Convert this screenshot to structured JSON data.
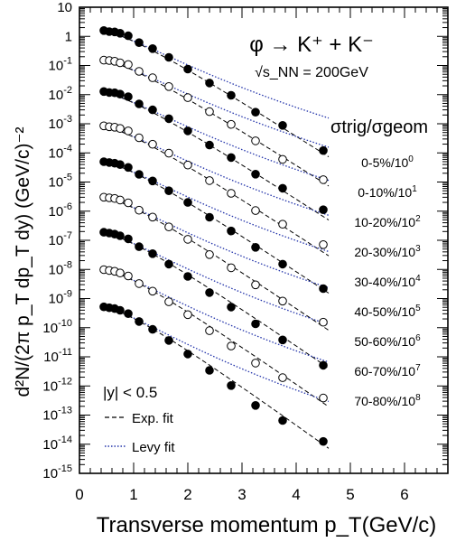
{
  "chart_data": {
    "type": "scatter",
    "title": "φ → K⁺ + K⁻",
    "subtitle": "√s_NN = 200GeV",
    "xlabel": "Transverse momentum p_T(GeV/c)",
    "ylabel": "d²N/(2π p_T dp_T dy) (GeV/c)⁻²",
    "xlim": [
      0,
      6.8
    ],
    "ylim_log10": [
      -15,
      1
    ],
    "y_scale": "log",
    "x_ticks": [
      0,
      1,
      2,
      3,
      4,
      5,
      6
    ],
    "y_ticks_exp": [
      -15,
      -14,
      -13,
      -12,
      -11,
      -10,
      -9,
      -8,
      -7,
      -6,
      -5,
      -4,
      -3,
      -2,
      -1,
      0,
      1
    ],
    "legend_header": "σtrig/σgeom",
    "annotations": {
      "rapidity": "|y| < 0.5",
      "exp_fit": "Exp. fit",
      "levy_fit": "Levy fit"
    },
    "x": [
      0.45,
      0.55,
      0.65,
      0.75,
      0.9,
      1.1,
      1.35,
      1.65,
      2.0,
      2.4,
      2.8,
      3.25,
      3.75,
      4.5
    ],
    "series": [
      {
        "name": "0-5%/10",
        "exp": "0",
        "marker": "filled",
        "A": 1.6,
        "T": 0.36,
        "y": [
          1.58,
          1.45,
          1.42,
          1.28,
          1.05,
          0.61,
          0.38,
          0.19,
          0.075,
          0.025,
          0.0095,
          0.0025,
          0.00088,
          0.00012
        ]
      },
      {
        "name": "0-10%/10",
        "exp": "1",
        "marker": "open",
        "A": 0.16,
        "T": 0.36,
        "y": [
          0.152,
          0.148,
          0.14,
          0.124,
          0.108,
          0.063,
          0.038,
          0.019,
          0.0079,
          0.0026,
          0.00095,
          0.00026,
          6e-05,
          1.2e-05
        ]
      },
      {
        "name": "10-20%/10",
        "exp": "2",
        "marker": "filled",
        "A": 0.0125,
        "T": 0.355,
        "y": [
          0.0128,
          0.0118,
          0.0116,
          0.0104,
          0.0085,
          0.0048,
          0.003,
          0.00149,
          0.00057,
          0.000186,
          6.9e-05,
          1.86e-05,
          6.1e-06,
          1.12e-06
        ]
      },
      {
        "name": "20-30%/10",
        "exp": "3",
        "marker": "open",
        "A": 0.00085,
        "T": 0.35,
        "y": [
          0.00085,
          0.00079,
          0.00076,
          0.00069,
          0.00057,
          0.00033,
          0.000198,
          9.78e-05,
          3.82e-05,
          1.12e-05,
          4.09e-06,
          1.05e-06,
          3.57e-07,
          7.1e-08
        ]
      },
      {
        "name": "30-40%/10",
        "exp": "4",
        "marker": "filled",
        "A": 5.2e-05,
        "T": 0.345,
        "y": [
          4.97e-05,
          4.69e-05,
          4.42e-05,
          3.98e-05,
          3.18e-05,
          1.83e-05,
          1.09e-05,
          5.01e-06,
          1.99e-06,
          6.19e-07,
          2.09e-07,
          5.74e-08,
          1.52e-08,
          2.2e-09
        ]
      },
      {
        "name": "40-50%/10",
        "exp": "5",
        "marker": "open",
        "A": 3.2e-06,
        "T": 0.34,
        "y": [
          3.02e-06,
          2.86e-06,
          2.72e-06,
          2.41e-06,
          1.93e-06,
          1.08e-06,
          6.28e-07,
          2.87e-07,
          1.08e-07,
          3.24e-08,
          1.14e-08,
          2.96e-09,
          8.19e-10,
          1.54e-10
        ]
      },
      {
        "name": "50-60%/10",
        "exp": "6",
        "marker": "filled",
        "A": 1.9e-07,
        "T": 0.335,
        "y": [
          1.89e-07,
          1.77e-07,
          1.62e-07,
          1.43e-07,
          1.12e-07,
          6.03e-08,
          3.47e-08,
          1.52e-08,
          5.73e-09,
          1.6e-09,
          5.1e-10,
          1.35e-10,
          3.8e-11,
          5.1e-12
        ]
      },
      {
        "name": "60-70%/10",
        "exp": "7",
        "marker": "open",
        "A": 1.05e-08,
        "T": 0.33,
        "y": [
          9.81e-09,
          9.19e-09,
          8.61e-09,
          7.54e-09,
          5.97e-09,
          3.27e-09,
          1.79e-09,
          7.75e-10,
          2.8e-10,
          7.85e-11,
          2.35e-11,
          6.12e-12,
          1.92e-12,
          3.86e-13
        ]
      },
      {
        "name": "70-80%/10",
        "exp": "8",
        "marker": "filled",
        "A": 5.5e-10,
        "T": 0.32,
        "y": [
          5.17e-10,
          4.83e-10,
          4.52e-10,
          3.95e-10,
          3.04e-10,
          1.63e-10,
          8.78e-11,
          3.64e-11,
          1.25e-11,
          3.42e-12,
          1.03e-12,
          2.15e-13,
          6.5e-14,
          1.24e-14
        ]
      }
    ]
  }
}
